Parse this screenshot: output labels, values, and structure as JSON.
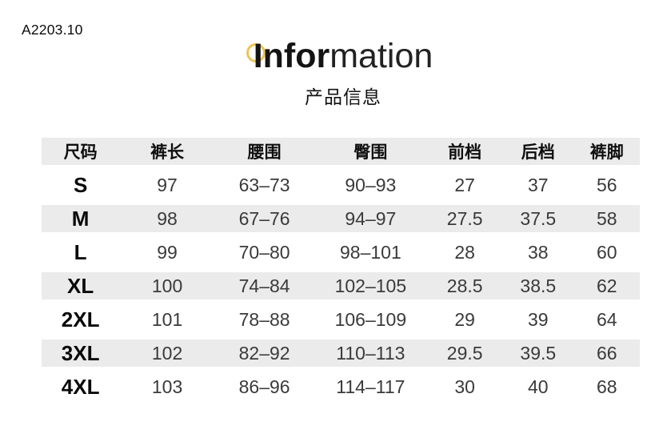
{
  "page": {
    "product_code": "A2203.10",
    "title_bold": "Infor",
    "title_light": "mation",
    "subtitle": "产品信息",
    "accent_color": "#ecc552",
    "stripe_color": "#ebebeb"
  },
  "chart_data": {
    "type": "table",
    "title": "Information",
    "subtitle": "产品信息",
    "columns": [
      "尺码",
      "裤长",
      "腰围",
      "臀围",
      "前档",
      "后档",
      "裤脚"
    ],
    "rows": [
      [
        "S",
        "97",
        "63–73",
        "90–93",
        "27",
        "37",
        "56"
      ],
      [
        "M",
        "98",
        "67–76",
        "94–97",
        "27.5",
        "37.5",
        "58"
      ],
      [
        "L",
        "99",
        "70–80",
        "98–101",
        "28",
        "38",
        "60"
      ],
      [
        "XL",
        "100",
        "74–84",
        "102–105",
        "28.5",
        "38.5",
        "62"
      ],
      [
        "2XL",
        "101",
        "78–88",
        "106–109",
        "29",
        "39",
        "64"
      ],
      [
        "3XL",
        "102",
        "82–92",
        "110–113",
        "29.5",
        "39.5",
        "66"
      ],
      [
        "4XL",
        "103",
        "86–96",
        "114–117",
        "30",
        "40",
        "68"
      ]
    ],
    "layout": {
      "striped_rows": true,
      "stripe_order": "header,M,XL,3XL",
      "grid": false
    }
  }
}
